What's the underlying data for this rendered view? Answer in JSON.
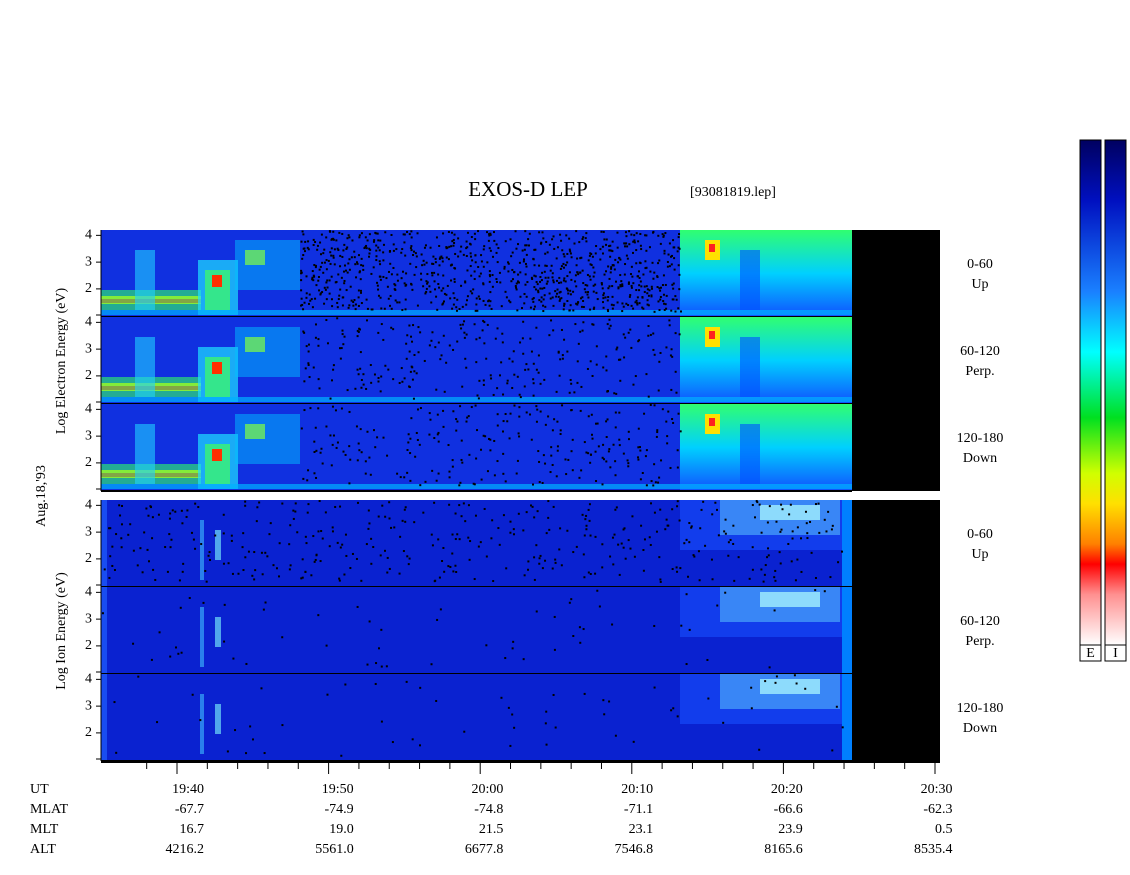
{
  "chart_data": {
    "type": "spectrogram",
    "title": "EXOS-D LEP",
    "file_label": "[93081819.lep]",
    "date_label": "Aug.18,'93",
    "groups": [
      {
        "axis_label": "Log Electron Energy (eV)",
        "colorbar_label": "E",
        "panels": [
          {
            "angle": "0-60",
            "direction": "Up"
          },
          {
            "angle": "60-120",
            "direction": "Perp."
          },
          {
            "angle": "120-180",
            "direction": "Down"
          }
        ]
      },
      {
        "axis_label": "Log Ion Energy (eV)",
        "colorbar_label": "I",
        "panels": [
          {
            "angle": "0-60",
            "direction": "Up"
          },
          {
            "angle": "60-120",
            "direction": "Perp."
          },
          {
            "angle": "120-180",
            "direction": "Down"
          }
        ]
      }
    ],
    "ylim": [
      0.95,
      4.2
    ],
    "yticks": [
      2,
      3,
      4
    ],
    "footer_rows": [
      {
        "label": "UT",
        "values": [
          "19:40",
          "19:50",
          "20:00",
          "20:10",
          "20:20",
          "20:30"
        ]
      },
      {
        "label": "MLAT",
        "values": [
          "-67.7",
          "-74.9",
          "-74.8",
          "-71.1",
          "-66.6",
          "-62.3"
        ]
      },
      {
        "label": "MLT",
        "values": [
          "16.7",
          "19.0",
          "21.5",
          "23.1",
          "23.9",
          "0.5"
        ]
      },
      {
        "label": "ALT",
        "values": [
          "4216.2",
          "5561.0",
          "6677.8",
          "7546.8",
          "8165.6",
          "8535.4"
        ]
      }
    ]
  }
}
